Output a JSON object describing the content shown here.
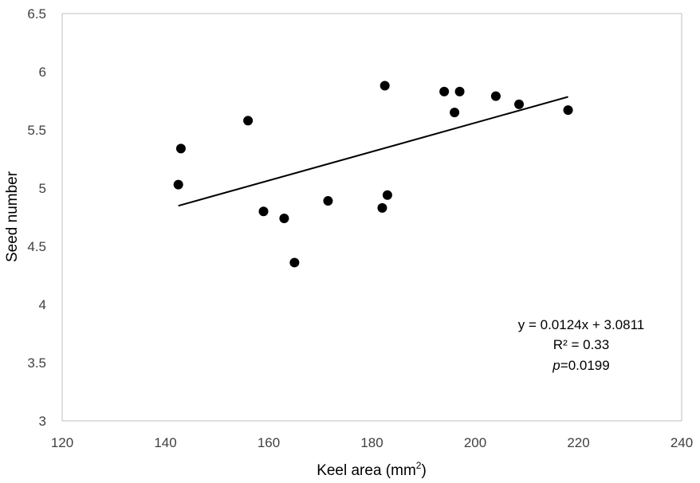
{
  "chart_data": {
    "type": "scatter",
    "title": "",
    "xlabel": "Keel area (mm",
    "xlabel_superscript": "2",
    "xlabel_suffix": ")",
    "ylabel": "Seed number",
    "xlim": [
      120,
      240
    ],
    "ylim": [
      3,
      6.5
    ],
    "x_ticks": [
      "120",
      "140",
      "160",
      "180",
      "200",
      "220",
      "240"
    ],
    "y_ticks": [
      "3",
      "3.5",
      "4",
      "4.5",
      "5",
      "5.5",
      "6",
      "6.5"
    ],
    "grid": false,
    "legend": "none",
    "marker_color": "#000000",
    "points": [
      {
        "x": 142.5,
        "y": 5.03
      },
      {
        "x": 143.0,
        "y": 5.34
      },
      {
        "x": 156.0,
        "y": 5.58
      },
      {
        "x": 159.0,
        "y": 4.8
      },
      {
        "x": 163.0,
        "y": 4.74
      },
      {
        "x": 165.0,
        "y": 4.36
      },
      {
        "x": 171.5,
        "y": 4.89
      },
      {
        "x": 182.0,
        "y": 4.83
      },
      {
        "x": 182.5,
        "y": 5.88
      },
      {
        "x": 183.0,
        "y": 4.94
      },
      {
        "x": 194.0,
        "y": 5.83
      },
      {
        "x": 196.0,
        "y": 5.65
      },
      {
        "x": 197.0,
        "y": 5.83
      },
      {
        "x": 204.0,
        "y": 5.79
      },
      {
        "x": 208.5,
        "y": 5.72
      },
      {
        "x": 218.0,
        "y": 5.67
      }
    ],
    "trendline": {
      "type": "linear",
      "slope": 0.0124,
      "intercept": 3.0811,
      "x_range": [
        142.5,
        218.0
      ]
    },
    "annotations": {
      "equation": "y = 0.0124x + 3.0811",
      "r2": "R² = 0.33",
      "p_label": "p",
      "p_value": "=0.0199"
    }
  }
}
